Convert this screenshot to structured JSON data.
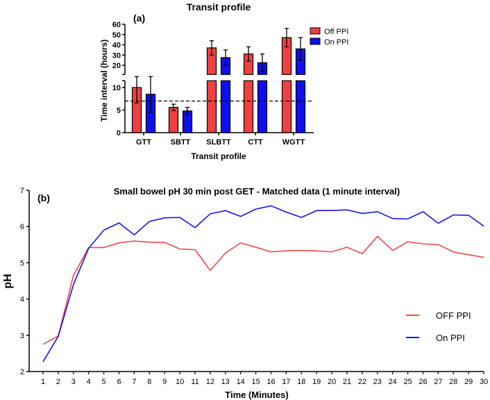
{
  "chart_data": [
    {
      "type": "bar",
      "panel_label": "(a)",
      "title": "Transit profile",
      "xlabel": "Transit profile",
      "ylabel": "Time interval (hours)",
      "categories": [
        "GTT",
        "SBTT",
        "SLBTT",
        "CTT",
        "WGTT"
      ],
      "series": [
        {
          "name": "Off PPI",
          "color": "#f04040",
          "values": [
            10,
            5.6,
            37,
            31,
            47
          ],
          "errors": [
            3.4,
            0.7,
            7,
            7,
            9
          ]
        },
        {
          "name": "On PPI",
          "color": "#1010ee",
          "values": [
            8.5,
            4.8,
            27.5,
            22.5,
            36
          ],
          "errors": [
            4,
            0.8,
            7.5,
            8.5,
            11
          ]
        }
      ],
      "y_axis_break": {
        "lower_range": [
          0,
          11
        ],
        "upper_range": [
          11,
          60
        ]
      },
      "lower_ticks": [
        0,
        5,
        10
      ],
      "upper_ticks": [
        20,
        30,
        40,
        50,
        60
      ],
      "reference_line": 7,
      "legend": "top-right"
    },
    {
      "type": "line",
      "panel_label": "(b)",
      "title": "Small bowel pH 30 min post GET - Matched data (1 minute interval)",
      "xlabel": "Time (Minutes)",
      "ylabel": "pH",
      "x": [
        1,
        2,
        3,
        4,
        5,
        6,
        7,
        8,
        9,
        10,
        11,
        12,
        13,
        14,
        15,
        16,
        17,
        18,
        19,
        20,
        21,
        22,
        23,
        24,
        25,
        26,
        27,
        28,
        29,
        30
      ],
      "ylim": [
        2,
        7
      ],
      "yticks": [
        2,
        3,
        4,
        5,
        6,
        7
      ],
      "series": [
        {
          "name": "OFF PPI",
          "color": "#f04848",
          "values": [
            2.75,
            2.98,
            4.65,
            5.42,
            5.42,
            5.55,
            5.6,
            5.57,
            5.56,
            5.38,
            5.36,
            4.79,
            5.27,
            5.55,
            5.43,
            5.3,
            5.33,
            5.34,
            5.33,
            5.3,
            5.43,
            5.25,
            5.73,
            5.34,
            5.58,
            5.52,
            5.5,
            5.3,
            5.22,
            5.15
          ]
        },
        {
          "name": "On PPI",
          "color": "#1414f0",
          "values": [
            2.27,
            2.97,
            4.4,
            5.4,
            5.9,
            6.1,
            5.77,
            6.14,
            6.24,
            6.25,
            5.97,
            6.35,
            6.44,
            6.28,
            6.48,
            6.57,
            6.4,
            6.25,
            6.44,
            6.44,
            6.46,
            6.36,
            6.41,
            6.22,
            6.21,
            6.41,
            6.09,
            6.32,
            6.31,
            6.01
          ]
        }
      ],
      "legend": "right"
    }
  ]
}
